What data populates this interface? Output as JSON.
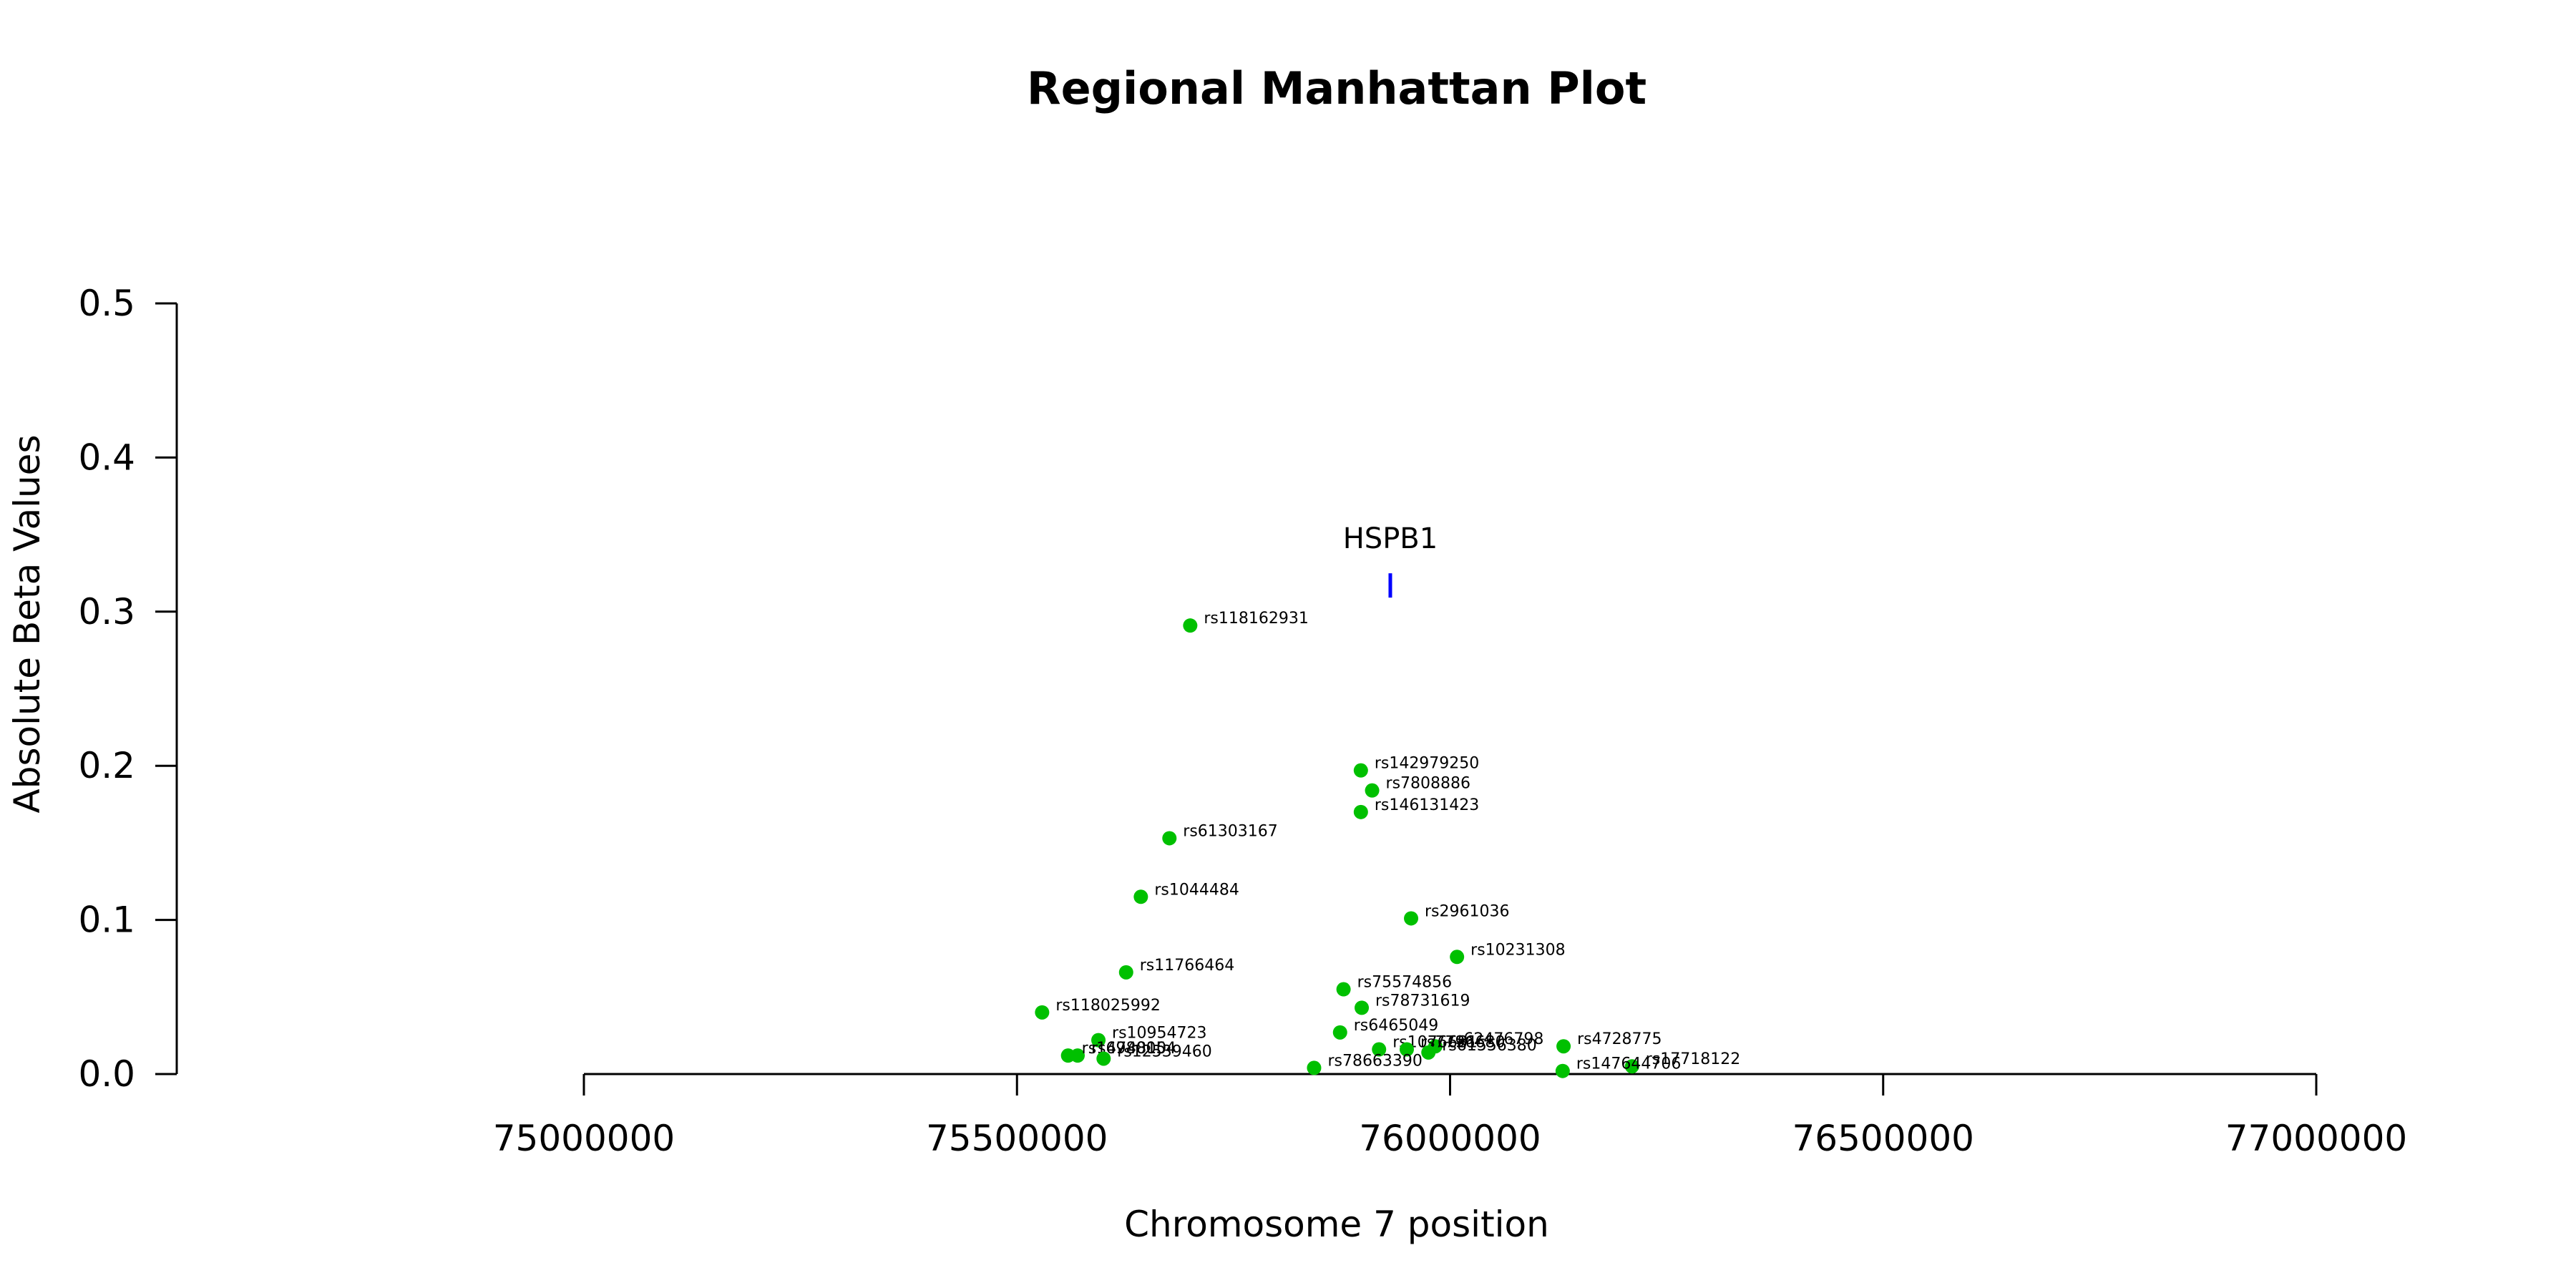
{
  "chart_data": {
    "type": "scatter",
    "title": "Regional Manhattan Plot",
    "xlabel": "Chromosome 7 position",
    "ylabel": "Absolute Beta Values",
    "xlim": [
      75000000,
      77000000
    ],
    "ylim": [
      0,
      0.5
    ],
    "x_ticks": [
      75000000,
      75500000,
      76000000,
      76500000,
      77000000
    ],
    "y_ticks": [
      0.0,
      0.1,
      0.2,
      0.3,
      0.4,
      0.5
    ],
    "x_tick_labels": [
      "75000000",
      "75500000",
      "76000000",
      "76500000",
      "77000000"
    ],
    "y_tick_labels": [
      "0.0",
      "0.1",
      "0.2",
      "0.3",
      "0.4",
      "0.5"
    ],
    "point_color": "#00c000",
    "gene_color": "#0000ff",
    "grid": false,
    "legend": "none",
    "genes": [
      {
        "name": "HSPB1",
        "x": 75931000,
        "y": 0.317
      }
    ],
    "points": [
      {
        "label": "rs118162931",
        "x": 75700000,
        "y": 0.291
      },
      {
        "label": "rs142979250",
        "x": 75897000,
        "y": 0.197
      },
      {
        "label": "rs7808886",
        "x": 75910000,
        "y": 0.184
      },
      {
        "label": "rs146131423",
        "x": 75897000,
        "y": 0.17
      },
      {
        "label": "rs61303167",
        "x": 75676000,
        "y": 0.153
      },
      {
        "label": "rs1044484",
        "x": 75643000,
        "y": 0.115
      },
      {
        "label": "rs2961036",
        "x": 75955000,
        "y": 0.101
      },
      {
        "label": "rs10231308",
        "x": 76008000,
        "y": 0.076
      },
      {
        "label": "rs11766464",
        "x": 75626000,
        "y": 0.066
      },
      {
        "label": "rs75574856",
        "x": 75877000,
        "y": 0.055
      },
      {
        "label": "rs78731619",
        "x": 75898000,
        "y": 0.043
      },
      {
        "label": "rs118025992",
        "x": 75529000,
        "y": 0.04
      },
      {
        "label": "rs6465049",
        "x": 75873000,
        "y": 0.027
      },
      {
        "label": "rs10954723",
        "x": 75594000,
        "y": 0.022
      },
      {
        "label": "rs62476798",
        "x": 75983000,
        "y": 0.018
      },
      {
        "label": "rs4728775",
        "x": 76131000,
        "y": 0.018
      },
      {
        "label": "rs1076681",
        "x": 75918000,
        "y": 0.016
      },
      {
        "label": "rs7796680",
        "x": 75950000,
        "y": 0.016
      },
      {
        "label": "rs61556380",
        "x": 75975000,
        "y": 0.014
      },
      {
        "label": "rs6980054",
        "x": 75570000,
        "y": 0.012
      },
      {
        "label": "rs1474810",
        "x": 75559000,
        "y": 0.012
      },
      {
        "label": "rs12539460",
        "x": 75600000,
        "y": 0.01
      },
      {
        "label": "rs17718122",
        "x": 76210000,
        "y": 0.005
      },
      {
        "label": "rs78663390",
        "x": 75843000,
        "y": 0.004
      },
      {
        "label": "rs147644706",
        "x": 76130000,
        "y": 0.002
      }
    ]
  }
}
